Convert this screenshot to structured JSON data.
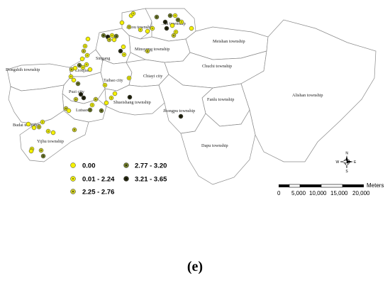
{
  "panel_label": "(e)",
  "townships": [
    {
      "id": "dongshih",
      "label": "Dongshih township"
    },
    {
      "id": "lioujiao",
      "label": "Lioujiao"
    },
    {
      "id": "singang",
      "label": "Singang"
    },
    {
      "id": "minsyong",
      "label": "Minsyong township"
    },
    {
      "id": "meishan",
      "label": "Meishan township"
    },
    {
      "id": "chuchi",
      "label": "Chuchi township"
    },
    {
      "id": "alishan",
      "label": "Alishan township"
    },
    {
      "id": "chiayi",
      "label": "Chiayi city"
    },
    {
      "id": "taibao",
      "label": "Taibao city"
    },
    {
      "id": "puzi",
      "label": "Puzi city"
    },
    {
      "id": "lutsao",
      "label": "Lutsao"
    },
    {
      "id": "shueishang",
      "label": "Shueishang township"
    },
    {
      "id": "fanlu",
      "label": "Fanlu township"
    },
    {
      "id": "jhongpu",
      "label": "Jhongpu township"
    },
    {
      "id": "budai",
      "label": "Budai township"
    },
    {
      "id": "yijhu",
      "label": "Yijhu township"
    },
    {
      "id": "dapu",
      "label": "Dapu township"
    },
    {
      "id": "sikou",
      "label": "...kou township"
    },
    {
      "id": "dalin",
      "label": "...in township"
    }
  ],
  "legend": {
    "classes": [
      {
        "label": "0.00",
        "fill": "#f4f000",
        "center": "#f4f000"
      },
      {
        "label": "0.01 - 2.24",
        "fill": "#eaea10",
        "center": "#6a6a00"
      },
      {
        "label": "2.25 - 2.76",
        "fill": "#c8c828",
        "center": "#3a3a00"
      },
      {
        "label": "2.77 - 3.20",
        "fill": "#6e7a2a",
        "center": "#151500"
      },
      {
        "label": "3.21 - 3.65",
        "fill": "#262810",
        "center": "#000000"
      }
    ]
  },
  "compass": {
    "n": "N",
    "s": "S",
    "e": "E",
    "w": "W"
  },
  "scale_bar": {
    "unit": "Meters",
    "ticks": [
      "0",
      "5,000",
      "10,000",
      "15,000",
      "20,000"
    ]
  },
  "points": [
    [
      0,
      185,
      22
    ],
    [
      1,
      188,
      19
    ],
    [
      0,
      172,
      32
    ],
    [
      2,
      182,
      38
    ],
    [
      1,
      198,
      42
    ],
    [
      0,
      208,
      44
    ],
    [
      1,
      215,
      40
    ],
    [
      3,
      221,
      24
    ],
    [
      4,
      233,
      31
    ],
    [
      3,
      240,
      22
    ],
    [
      1,
      247,
      22
    ],
    [
      3,
      251,
      28
    ],
    [
      0,
      243,
      36
    ],
    [
      4,
      235,
      40
    ],
    [
      1,
      248,
      45
    ],
    [
      2,
      245,
      50
    ],
    [
      1,
      256,
      31
    ],
    [
      0,
      270,
      40
    ],
    [
      3,
      146,
      50
    ],
    [
      4,
      152,
      52
    ],
    [
      1,
      158,
      50
    ],
    [
      2,
      154,
      56
    ],
    [
      0,
      161,
      56
    ],
    [
      3,
      164,
      51
    ],
    [
      0,
      174,
      66
    ],
    [
      1,
      175,
      77
    ],
    [
      4,
      170,
      72
    ],
    [
      2,
      208,
      72
    ],
    [
      0,
      124,
      55
    ],
    [
      1,
      120,
      65
    ],
    [
      2,
      118,
      72
    ],
    [
      1,
      123,
      78
    ],
    [
      0,
      116,
      83
    ],
    [
      3,
      112,
      92
    ],
    [
      1,
      117,
      95
    ],
    [
      1,
      122,
      91
    ],
    [
      0,
      127,
      98
    ],
    [
      0,
      106,
      96
    ],
    [
      2,
      101,
      98
    ],
    [
      1,
      100,
      108
    ],
    [
      0,
      104,
      113
    ],
    [
      3,
      110,
      118
    ],
    [
      4,
      114,
      133
    ],
    [
      4,
      118,
      138
    ],
    [
      2,
      107,
      140
    ],
    [
      1,
      182,
      110
    ],
    [
      4,
      183,
      137
    ],
    [
      0,
      162,
      132
    ],
    [
      1,
      157,
      138
    ],
    [
      0,
      150,
      145
    ],
    [
      3,
      143,
      156
    ],
    [
      1,
      130,
      148
    ],
    [
      3,
      127,
      155
    ],
    [
      2,
      93,
      153
    ],
    [
      0,
      97,
      156
    ],
    [
      1,
      60,
      172
    ],
    [
      2,
      55,
      179
    ],
    [
      0,
      48,
      180
    ],
    [
      0,
      40,
      175
    ],
    [
      1,
      68,
      185
    ],
    [
      0,
      75,
      187
    ],
    [
      2,
      58,
      212
    ],
    [
      1,
      45,
      210
    ],
    [
      2,
      105,
      183
    ],
    [
      3,
      61,
      220
    ],
    [
      0,
      44,
      213
    ],
    [
      1,
      148,
      120
    ],
    [
      2,
      135,
      140
    ],
    [
      4,
      255,
      164
    ]
  ]
}
